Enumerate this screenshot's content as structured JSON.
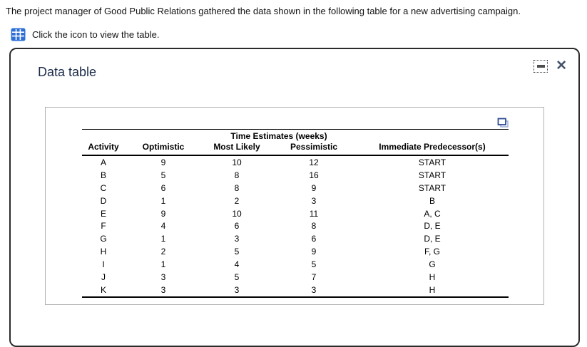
{
  "intro": {
    "text": "The project manager of Good Public Relations gathered the data shown in the following table for a new advertising campaign."
  },
  "click_prompt": {
    "text": "Click the icon to view the table.",
    "icon": "table-grid-icon"
  },
  "modal": {
    "title": "Data table",
    "minimize_icon": "minimize-icon",
    "close_icon": "close-icon",
    "copy_icon": "copy-table-icon"
  },
  "table": {
    "group_header": "Time Estimates (weeks)",
    "columns": [
      "Activity",
      "Optimistic",
      "Most Likely",
      "Pessimistic",
      "Immediate Predecessor(s)"
    ],
    "rows": [
      [
        "A",
        "9",
        "10",
        "12",
        "START"
      ],
      [
        "B",
        "5",
        "8",
        "16",
        "START"
      ],
      [
        "C",
        "6",
        "8",
        "9",
        "START"
      ],
      [
        "D",
        "1",
        "2",
        "3",
        "B"
      ],
      [
        "E",
        "9",
        "10",
        "11",
        "A, C"
      ],
      [
        "F",
        "4",
        "6",
        "8",
        "D, E"
      ],
      [
        "G",
        "1",
        "3",
        "6",
        "D, E"
      ],
      [
        "H",
        "2",
        "5",
        "9",
        "F, G"
      ],
      [
        "I",
        "1",
        "4",
        "5",
        "G"
      ],
      [
        "J",
        "3",
        "5",
        "7",
        "H"
      ],
      [
        "K",
        "3",
        "3",
        "3",
        "H"
      ]
    ]
  },
  "colors": {
    "icon_blue": "#2e6fd6",
    "copy_front": "#2c4a91",
    "copy_back": "#9fadd9",
    "title_navy": "#1c2b4a",
    "close_slate": "#44546a",
    "modal_border": "#2b2b2b",
    "panel_border": "#b3b3b3"
  }
}
